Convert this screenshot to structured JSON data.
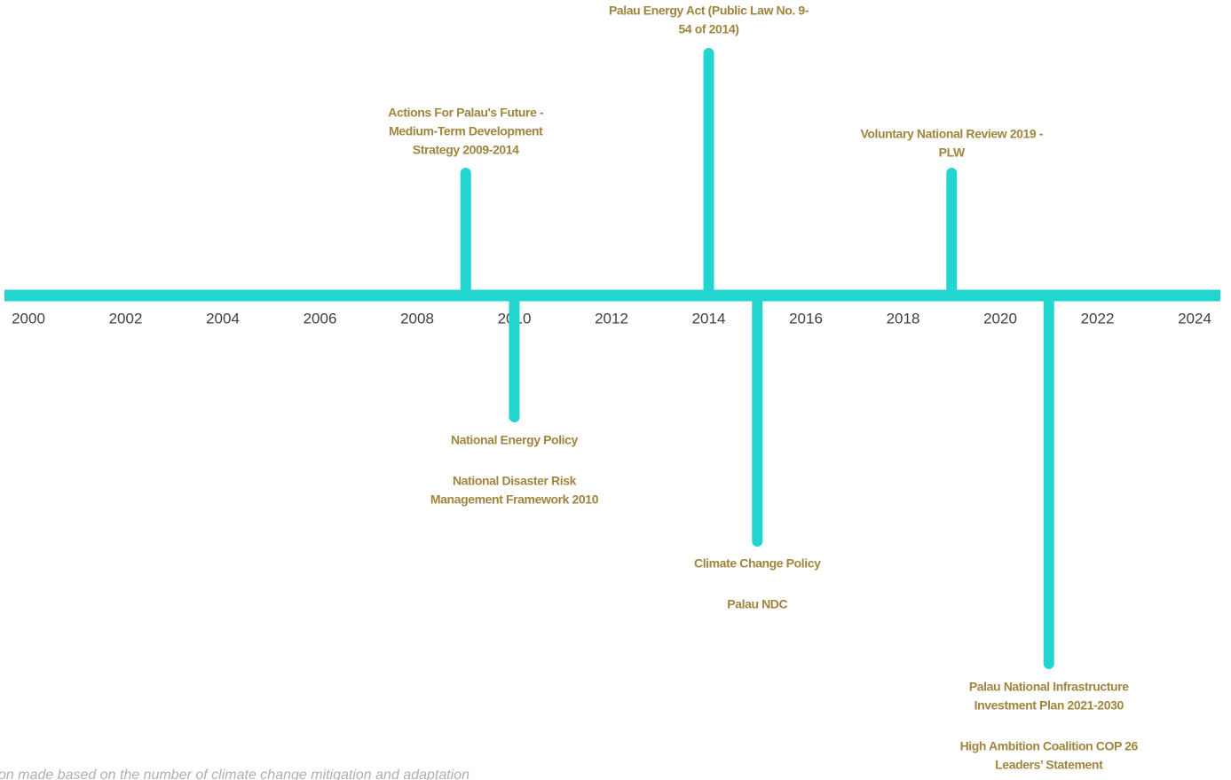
{
  "axis": {
    "ticks": [
      2000,
      2002,
      2004,
      2006,
      2008,
      2010,
      2012,
      2014,
      2016,
      2018,
      2020,
      2022,
      2024
    ]
  },
  "events": [
    {
      "year": 2009,
      "items": [
        [
          "Actions For Palau's Future -",
          "Medium-Term Development",
          "Strategy 2009-2014"
        ]
      ]
    },
    {
      "year": 2014,
      "items": [
        [
          "Palau Energy Act (Public Law No. 9-",
          "54 of 2014)"
        ]
      ]
    },
    {
      "year": 2019,
      "items": [
        [
          "Voluntary National Review 2019 -",
          "PLW"
        ]
      ]
    },
    {
      "year": 2010,
      "items": [
        [
          "National Energy Policy"
        ],
        [
          "National Disaster Risk",
          "Management Framework 2010"
        ]
      ]
    },
    {
      "year": 2015,
      "items": [
        [
          "Climate Change Policy"
        ],
        [
          "Palau NDC"
        ]
      ]
    },
    {
      "year": 2021,
      "items": [
        [
          "Palau National Infrastructure",
          "Investment Plan 2021-2030"
        ],
        [
          "High Ambition Coalition COP 26",
          "Leaders’ Statement"
        ]
      ]
    }
  ],
  "footnote": "on made based on the number of climate change mitigation and adaptation"
}
